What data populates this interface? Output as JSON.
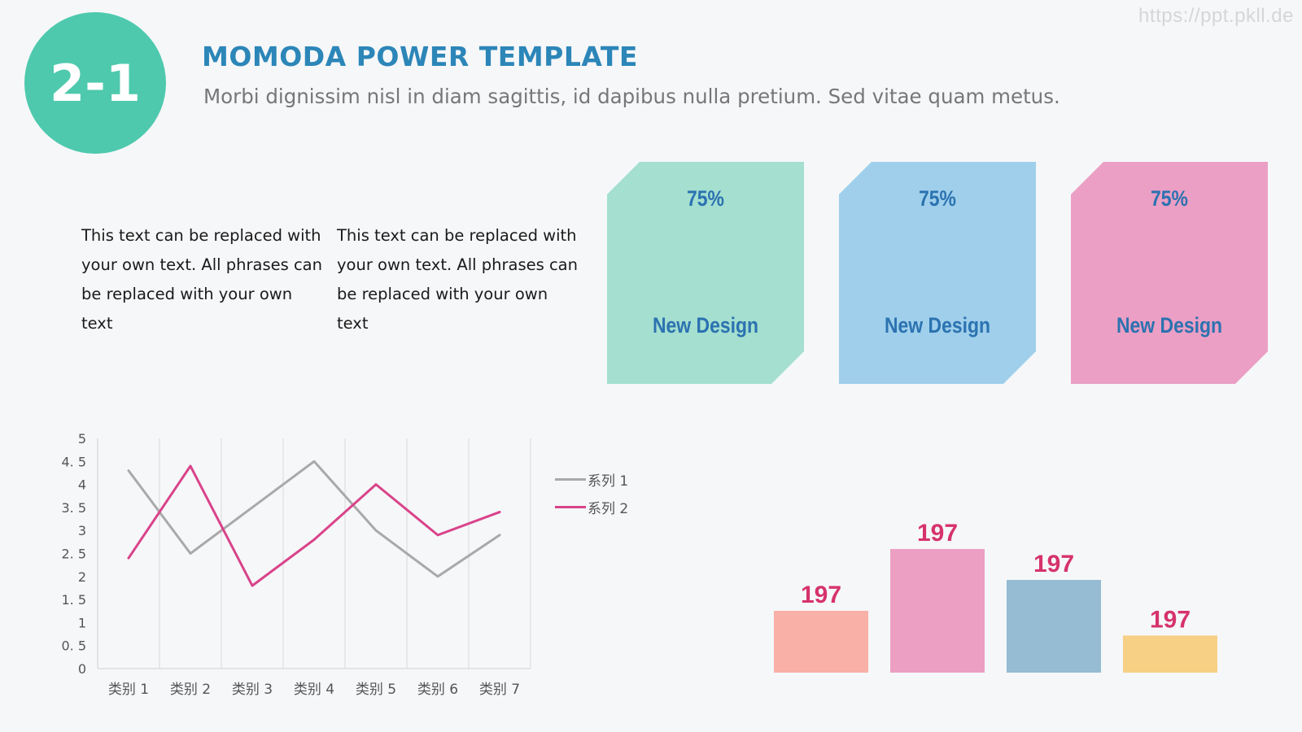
{
  "watermark": "https://ppt.pkll.de",
  "header": {
    "badge": "2-1",
    "title": "MOMODA POWER TEMPLATE",
    "subtitle": "Morbi dignissim nisl in diam sagittis, id dapibus nulla pretium. Sed vitae quam metus."
  },
  "paragraphs": [
    "This text can be replaced with your own text. All phrases can be replaced with your own text",
    "This text can be replaced with your own text. All phrases can be replaced with your own text"
  ],
  "cards": [
    {
      "percent": "75%",
      "label": "New Design",
      "color": "#a4dfd0"
    },
    {
      "percent": "75%",
      "label": "New Design",
      "color": "#9fcfeb"
    },
    {
      "percent": "75%",
      "label": "New Design",
      "color": "#eb9fc4"
    }
  ],
  "chart_data": [
    {
      "type": "line",
      "categories": [
        "类别 1",
        "类别 2",
        "类别 3",
        "类别 4",
        "类别 5",
        "类别 6",
        "类别 7"
      ],
      "series": [
        {
          "name": "系列 1",
          "values": [
            4.3,
            2.5,
            3.5,
            4.5,
            3.0,
            2.0,
            2.9
          ],
          "color": "#a9a9a9"
        },
        {
          "name": "系列 2",
          "values": [
            2.4,
            4.4,
            1.8,
            2.8,
            4.0,
            2.9,
            3.4
          ],
          "color": "#d9438a"
        }
      ],
      "ylim": [
        0,
        5
      ],
      "yticks": [
        "0",
        "0. 5",
        "1",
        "1. 5",
        "2",
        "2. 5",
        "3",
        "3. 5",
        "4",
        "4. 5",
        "5"
      ],
      "grid": "vertical",
      "legend": "right"
    },
    {
      "type": "bar",
      "categories": [
        "",
        "",
        "",
        ""
      ],
      "values": [
        1,
        2,
        1.5,
        0.6
      ],
      "labels": [
        "197",
        "197",
        "197",
        "197"
      ],
      "colors": [
        "#f9b0a6",
        "#ec9fc3",
        "#95bcd3",
        "#f7cf85"
      ],
      "label_color": "#d6336c"
    }
  ]
}
